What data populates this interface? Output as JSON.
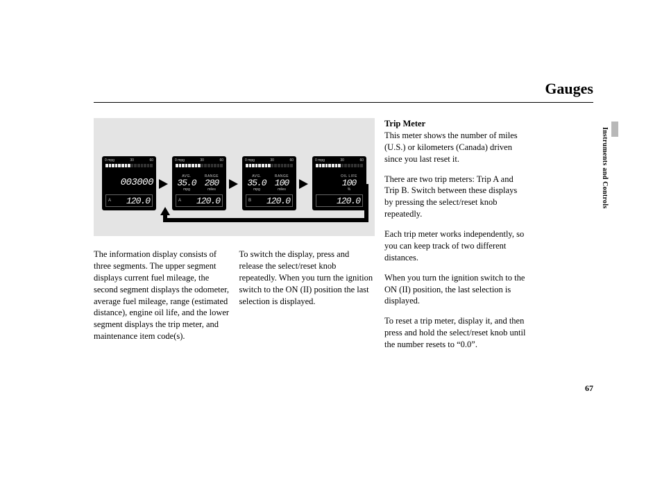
{
  "page_title": "Gauges",
  "section_tab": "Instruments and Controls",
  "page_number": "67",
  "gauges": {
    "scale": {
      "lo": "0",
      "unit": "mpg",
      "mid": "30",
      "hi": "60"
    },
    "g1": {
      "odometer": "003000",
      "trip_label": "A",
      "trip_value": "120.0"
    },
    "g2": {
      "avg_label": "AVG.",
      "avg_value": "35.0",
      "avg_unit": "mpg",
      "range_label": "RANGE",
      "range_value": "280",
      "range_unit": "miles",
      "trip_label": "A",
      "trip_value": "120.0"
    },
    "g3": {
      "avg_label": "AVG.",
      "avg_value": "35.0",
      "avg_unit": "mpg",
      "range_label": "RANGE",
      "range_value": "100",
      "range_unit": "miles",
      "trip_label": "B",
      "trip_value": "120.0"
    },
    "g4": {
      "oil_label": "OIL LIFE",
      "oil_value": "100",
      "oil_unit": "%",
      "trip_label": "",
      "trip_value": "120.0"
    }
  },
  "body": {
    "left_p1": "The information display consists of three segments. The upper segment displays current fuel mileage, the second segment displays the odometer, average fuel mileage, range (estimated distance), engine oil life, and the lower segment displays the trip meter, and maintenance item code(s).",
    "left_p2": "To switch the display, press and release the select/reset knob repeatedly. When you turn the ignition switch to the ON (II) position the last selection is displayed.",
    "right_h": "Trip Meter",
    "right_p1": "This meter shows the number of miles (U.S.) or kilometers (Canada) driven since you last reset it.",
    "right_p2": "There are two trip meters: Trip A and Trip B. Switch between these displays by pressing the select/reset knob repeatedly.",
    "right_p3": "Each trip meter works independently, so you can keep track of two different distances.",
    "right_p4": "When you turn the ignition switch to the ON (II) position, the last selection is displayed.",
    "right_p5": "To reset a trip meter, display it, and then press and hold the select/reset knob until the number resets to “0.0”."
  }
}
